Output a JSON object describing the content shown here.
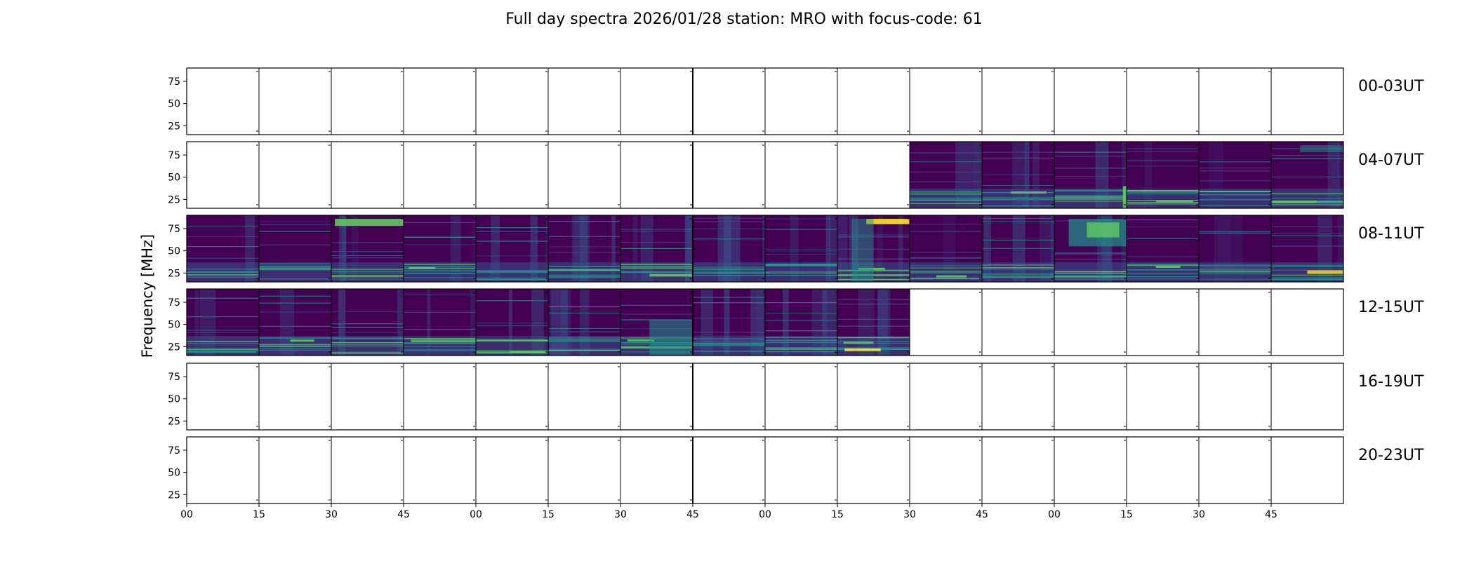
{
  "chart_data": {
    "type": "heatmap",
    "title": "Full day spectra 2026/01/28 station: MRO with focus-code: 61",
    "ylabel": "Frequency [MHz]",
    "xlabel": "",
    "y_ticks": [
      "25",
      "50",
      "75"
    ],
    "y_tick_values": [
      25,
      50,
      75
    ],
    "ylim": [
      15,
      90
    ],
    "x_tick_labels": [
      "00",
      "15",
      "30",
      "45",
      "00",
      "15",
      "30",
      "45",
      "00",
      "15",
      "30",
      "45",
      "00",
      "15",
      "30",
      "45"
    ],
    "panels_per_row": 16,
    "panel_minutes": 15,
    "colormap": [
      "#440154",
      "#3b528b",
      "#21918c",
      "#5ec962",
      "#fde725"
    ],
    "rows": [
      {
        "label": "00-03UT",
        "data_panels": []
      },
      {
        "label": "04-07UT",
        "data_panels": [
          10,
          11,
          12,
          13,
          14,
          15
        ]
      },
      {
        "label": "08-11UT",
        "data_panels": [
          0,
          1,
          2,
          3,
          4,
          5,
          6,
          7,
          8,
          9,
          10,
          11,
          12,
          13,
          14,
          15
        ]
      },
      {
        "label": "12-15UT",
        "data_panels": [
          0,
          1,
          2,
          3,
          4,
          5,
          6,
          7,
          8,
          9
        ]
      },
      {
        "label": "16-19UT",
        "data_panels": []
      },
      {
        "label": "20-23UT",
        "data_panels": []
      }
    ]
  }
}
